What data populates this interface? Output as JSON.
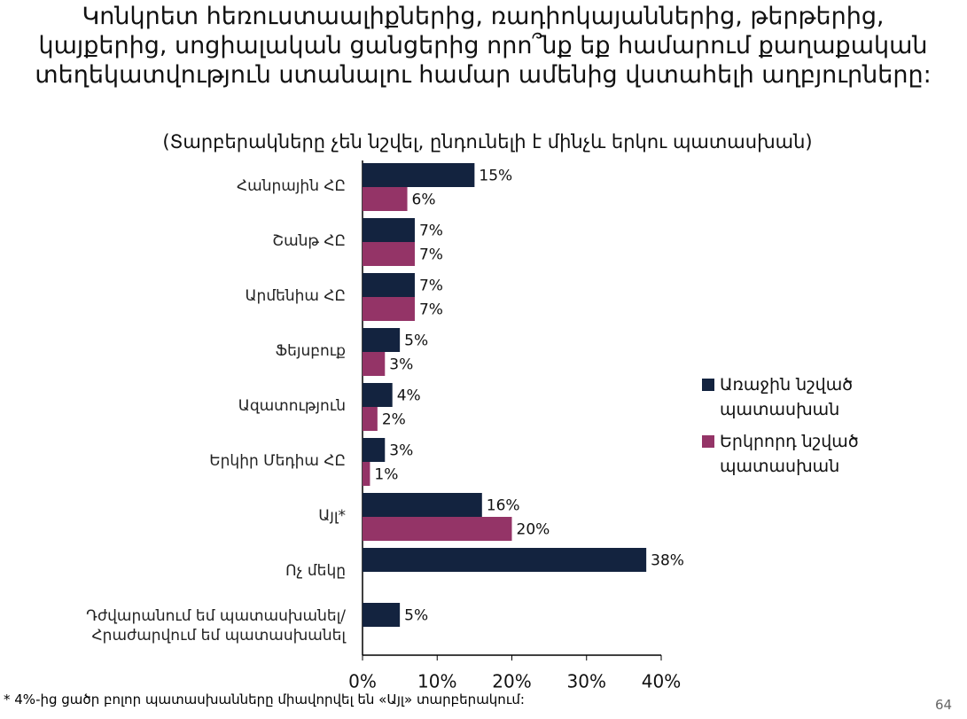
{
  "chart_data": {
    "type": "bar",
    "orientation": "horizontal",
    "title": "Կոնկրետ հեռուստաալիքներից, ռադիոկայաններից, թերթերից, կայքերից, սոցիալական ցանցերից որո՞նք եք համարում քաղաքական տեղեկատվություն ստանալու համար  ամենից վստահելի աղբյուրները:",
    "subtitle": "(Տարբերակները չեն նշվել, ընդունելի է մինչև երկու պատասխան)",
    "categories": [
      "Հանրային ՀԸ",
      "Շանթ ՀԸ",
      "Արմենիա ՀԸ",
      "Ֆեյսբուք",
      "Ազատություն",
      "Երկիր Մեդիա ՀԸ",
      "Այլ*",
      "Ոչ մեկը",
      "Դժվարանում եմ պատասխանել/\nՀրաժարվում եմ պատասխանել"
    ],
    "series": [
      {
        "name": "Առաջին նշված պատասխան",
        "color": "#13233f",
        "values": [
          15,
          7,
          7,
          5,
          4,
          3,
          16,
          38,
          5
        ],
        "value_labels": [
          "15%",
          "7%",
          "7%",
          "5%",
          "4%",
          "3%",
          "16%",
          "38%",
          "5%"
        ]
      },
      {
        "name": "Երկրորդ նշված պատասխան",
        "color": "#943467",
        "values": [
          6,
          7,
          7,
          3,
          2,
          1,
          20,
          null,
          null
        ],
        "value_labels": [
          "6%",
          "7%",
          "7%",
          "3%",
          "2%",
          "1%",
          "20%",
          null,
          null
        ]
      }
    ],
    "xlim": [
      0,
      40
    ],
    "xticks": [
      {
        "value": 0,
        "label": "0%"
      },
      {
        "value": 10,
        "label": "10%"
      },
      {
        "value": 20,
        "label": "20%"
      },
      {
        "value": 30,
        "label": "30%"
      },
      {
        "value": 40,
        "label": "40%"
      }
    ],
    "legend": "right",
    "grid": false
  },
  "footnote": "* 4%-ից ցածր բոլոր պատասխանները միավորվել են «Այլ» տարբերակում:",
  "page_number": "64"
}
